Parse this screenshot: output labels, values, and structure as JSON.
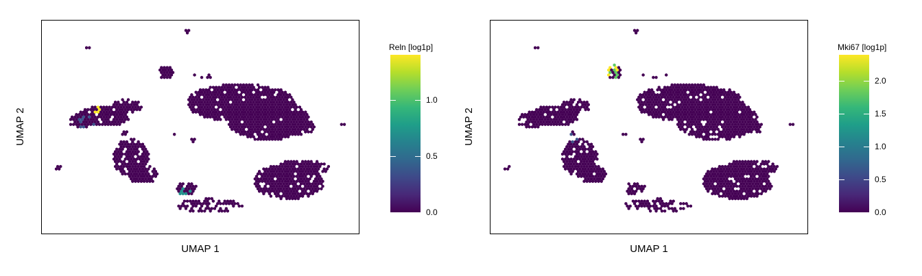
{
  "chart_data": [
    {
      "type": "hexbin-scatter",
      "xlabel": "UMAP 1",
      "ylabel": "UMAP 2",
      "colorbar": {
        "title": "Reln [log1p]",
        "colormap": "viridis",
        "range": [
          0.0,
          1.4
        ],
        "ticks": [
          0.0,
          0.5,
          1.0
        ],
        "tick_labels": [
          "0.0",
          "0.5",
          "1.0"
        ]
      },
      "grid": false,
      "base_color": "#440154",
      "highlight_colors": [
        "#3b528b",
        "#21918c",
        "#5ec962",
        "#fde725"
      ]
    },
    {
      "type": "hexbin-scatter",
      "xlabel": "UMAP 1",
      "ylabel": "UMAP 2",
      "colorbar": {
        "title": "Mki67 [log1p]",
        "colormap": "viridis",
        "range": [
          0.0,
          2.4
        ],
        "ticks": [
          0.0,
          0.5,
          1.0,
          1.5,
          2.0
        ],
        "tick_labels": [
          "0.0",
          "0.5",
          "1.0",
          "1.5",
          "2.0"
        ]
      },
      "grid": false,
      "base_color": "#440154",
      "highlight_colors": [
        "#3b528b",
        "#21918c",
        "#5ec962",
        "#fde725"
      ]
    }
  ]
}
